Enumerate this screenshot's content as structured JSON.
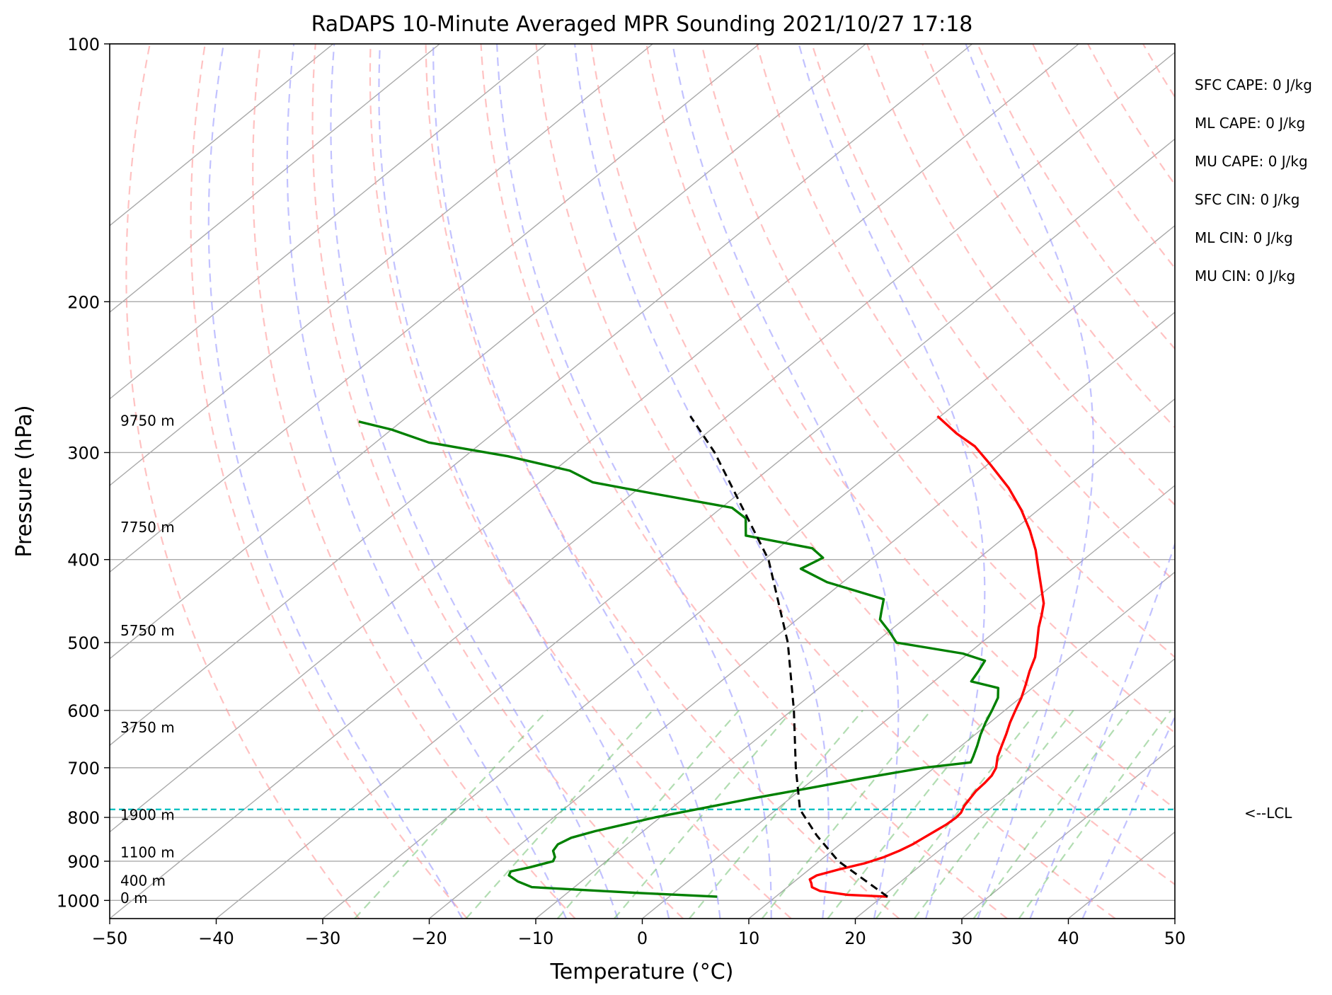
{
  "chart_data": {
    "type": "line",
    "title": "RaDAPS 10-Minute Averaged MPR Sounding 2021/10/27 17:18",
    "xlabel": "Temperature (°C)",
    "ylabel": "Pressure (hPa)",
    "xlim": [
      -50,
      50
    ],
    "ylim": [
      1050,
      100
    ],
    "y_scale": "log",
    "x_ticks": [
      -50,
      -40,
      -30,
      -20,
      -10,
      0,
      10,
      20,
      30,
      40,
      50
    ],
    "x_tick_labels": [
      "−50",
      "−40",
      "−30",
      "−20",
      "−10",
      "0",
      "10",
      "20",
      "30",
      "40",
      "50"
    ],
    "y_ticks": [
      100,
      200,
      300,
      400,
      500,
      600,
      700,
      800,
      900,
      1000
    ],
    "y_tick_labels": [
      "100",
      "200",
      "300",
      "400",
      "500",
      "600",
      "700",
      "800",
      "900",
      "1000"
    ],
    "grid": true,
    "skew": true,
    "isotherms_c": [
      -130,
      -120,
      -110,
      -100,
      -90,
      -80,
      -70,
      -60,
      -50,
      -40,
      -30,
      -20,
      -10,
      0,
      10,
      20,
      30,
      40,
      50
    ],
    "dry_adiabats_c": [
      -30,
      -20,
      -10,
      0,
      10,
      20,
      30,
      40,
      50,
      60,
      70,
      80,
      90,
      100,
      110,
      120,
      130,
      140,
      150,
      160,
      170,
      180,
      190,
      200
    ],
    "moist_adiabats_c": [
      -20,
      -10,
      -5,
      0,
      5,
      10,
      15,
      20,
      25,
      30,
      35,
      40
    ],
    "mixing_ratio_lines_gkg": [
      0.4,
      1,
      2,
      3,
      5,
      8,
      12,
      16,
      20,
      28,
      36
    ],
    "series": [
      {
        "color": "#ff0000",
        "points": [
          [
            990,
            20.5
          ],
          [
            985,
            16.5
          ],
          [
            975,
            13.5
          ],
          [
            965,
            12.3
          ],
          [
            955,
            11.8
          ],
          [
            945,
            11.2
          ],
          [
            935,
            11.4
          ],
          [
            920,
            12.8
          ],
          [
            905,
            14.5
          ],
          [
            890,
            15.6
          ],
          [
            875,
            16.3
          ],
          [
            860,
            16.8
          ],
          [
            845,
            17.1
          ],
          [
            830,
            17.4
          ],
          [
            815,
            17.7
          ],
          [
            800,
            17.8
          ],
          [
            790,
            17.7
          ],
          [
            775,
            17.2
          ],
          [
            760,
            16.9
          ],
          [
            745,
            16.6
          ],
          [
            730,
            16.5
          ],
          [
            715,
            16.3
          ],
          [
            700,
            15.8
          ],
          [
            680,
            14.7
          ],
          [
            660,
            13.8
          ],
          [
            640,
            12.9
          ],
          [
            620,
            11.9
          ],
          [
            600,
            11.0
          ],
          [
            580,
            10.1
          ],
          [
            560,
            9.0
          ],
          [
            540,
            7.8
          ],
          [
            520,
            6.7
          ],
          [
            500,
            5.2
          ],
          [
            480,
            3.6
          ],
          [
            465,
            2.5
          ],
          [
            450,
            1.3
          ],
          [
            430,
            -0.9
          ],
          [
            410,
            -3.2
          ],
          [
            390,
            -5.6
          ],
          [
            370,
            -8.4
          ],
          [
            350,
            -11.6
          ],
          [
            330,
            -15.3
          ],
          [
            310,
            -19.7
          ],
          [
            295,
            -23.3
          ],
          [
            285,
            -26.5
          ],
          [
            272,
            -30.3
          ]
        ]
      },
      {
        "color": "#008000",
        "points": [
          [
            990,
            4.5
          ],
          [
            980,
            -3.5
          ],
          [
            965,
            -14.0
          ],
          [
            950,
            -16.0
          ],
          [
            935,
            -17.5
          ],
          [
            925,
            -17.8
          ],
          [
            915,
            -16.5
          ],
          [
            900,
            -15.0
          ],
          [
            890,
            -15.3
          ],
          [
            875,
            -16.2
          ],
          [
            860,
            -16.5
          ],
          [
            845,
            -16.0
          ],
          [
            830,
            -14.5
          ],
          [
            815,
            -12.5
          ],
          [
            800,
            -10.5
          ],
          [
            780,
            -7.0
          ],
          [
            760,
            -3.5
          ],
          [
            740,
            0.5
          ],
          [
            720,
            4.5
          ],
          [
            700,
            9.0
          ],
          [
            690,
            12.8
          ],
          [
            680,
            12.4
          ],
          [
            660,
            11.5
          ],
          [
            640,
            10.5
          ],
          [
            620,
            9.6
          ],
          [
            600,
            8.8
          ],
          [
            580,
            7.9
          ],
          [
            565,
            6.8
          ],
          [
            555,
            3.5
          ],
          [
            540,
            3.0
          ],
          [
            525,
            2.4
          ],
          [
            515,
            -0.5
          ],
          [
            500,
            -8.0
          ],
          [
            485,
            -10.0
          ],
          [
            470,
            -12.2
          ],
          [
            460,
            -13.0
          ],
          [
            445,
            -14.2
          ],
          [
            425,
            -21.5
          ],
          [
            410,
            -25.5
          ],
          [
            398,
            -24.7
          ],
          [
            388,
            -26.8
          ],
          [
            375,
            -34.5
          ],
          [
            358,
            -36.5
          ],
          [
            348,
            -39.0
          ],
          [
            335,
            -48.0
          ],
          [
            325,
            -55.0
          ],
          [
            315,
            -58.5
          ],
          [
            303,
            -66.0
          ],
          [
            292,
            -75.0
          ],
          [
            282,
            -80.0
          ],
          [
            276,
            -84.0
          ]
        ]
      },
      {
        "color": "#000000",
        "style": "dashed",
        "points": [
          [
            990,
            20.5
          ],
          [
            900,
            11.8
          ],
          [
            840,
            6.8
          ],
          [
            783,
            2.2
          ],
          [
            700,
            -3.0
          ],
          [
            600,
            -9.8
          ],
          [
            500,
            -18.2
          ],
          [
            400,
            -29.6
          ],
          [
            300,
            -47.0
          ],
          [
            272,
            -53.5
          ]
        ]
      }
    ],
    "lcl": {
      "pressure": 783,
      "label": "<--LCL",
      "color": "#00bfbf"
    },
    "height_labels": [
      {
        "pressure": 992,
        "label": "0 m"
      },
      {
        "pressure": 947,
        "label": "400 m"
      },
      {
        "pressure": 877,
        "label": "1100 m"
      },
      {
        "pressure": 793,
        "label": "1900 m"
      },
      {
        "pressure": 627,
        "label": "3750 m"
      },
      {
        "pressure": 483,
        "label": "5750 m"
      },
      {
        "pressure": 366,
        "label": "7750 m"
      },
      {
        "pressure": 275,
        "label": "9750 m"
      }
    ]
  },
  "stats": [
    "SFC CAPE: 0 J/kg",
    "ML CAPE: 0 J/kg",
    "MU CAPE: 0 J/kg",
    "SFC CIN: 0 J/kg",
    "ML CIN: 0 J/kg",
    "MU CIN: 0 J/kg"
  ]
}
